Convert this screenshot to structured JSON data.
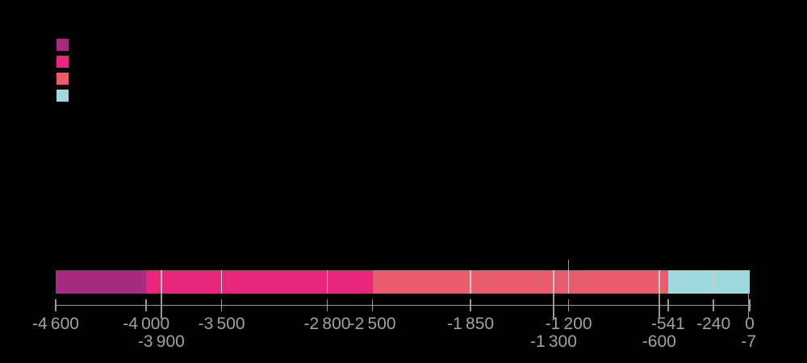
{
  "background_color": "#000000",
  "legend": {
    "swatches": [
      {
        "name": "period-group-1",
        "color": "#a62a7f"
      },
      {
        "name": "period-group-2",
        "color": "#e8267c"
      },
      {
        "name": "period-group-3",
        "color": "#e85c6e"
      },
      {
        "name": "period-group-4",
        "color": "#9fd9de"
      }
    ]
  },
  "chart_data": {
    "type": "bar",
    "subtype": "horizontal-stacked-timeline",
    "axis": {
      "min": -4600,
      "max": 0,
      "baseline_color": "#999999",
      "tick_color": "#999999",
      "label_color": "#a1a1a1",
      "grid": false
    },
    "segments": [
      {
        "start": -4600,
        "end": -4000,
        "color": "#a62a7f"
      },
      {
        "start": -4000,
        "end": -2500,
        "color": "#e8267c"
      },
      {
        "start": -2500,
        "end": -541,
        "color": "#e85c6e"
      },
      {
        "start": -541,
        "end": 0,
        "color": "#9fd9de"
      }
    ],
    "dividers": [
      -3900,
      -3500,
      -2800,
      -1850,
      -1300,
      -1200,
      -600,
      -240
    ],
    "ticks": [
      {
        "value": -4600,
        "label": "-4 600",
        "row": 1
      },
      {
        "value": -4000,
        "label": "-4 000",
        "row": 1
      },
      {
        "value": -3900,
        "label": "-3 900",
        "row": 2
      },
      {
        "value": -3500,
        "label": "-3 500",
        "row": 1
      },
      {
        "value": -2800,
        "label": "-2 800",
        "row": 1
      },
      {
        "value": -2500,
        "label": "-2 500",
        "row": 1
      },
      {
        "value": -1850,
        "label": "-1 850",
        "row": 1
      },
      {
        "value": -1300,
        "label": "-1 300",
        "row": 2
      },
      {
        "value": -1200,
        "label": "-1 200",
        "row": 1
      },
      {
        "value": -600,
        "label": "-600",
        "row": 2
      },
      {
        "value": -541,
        "label": "-541",
        "row": 1
      },
      {
        "value": -240,
        "label": "-240",
        "row": 1
      },
      {
        "value": -7,
        "label": "-7",
        "row": 2
      },
      {
        "value": 0,
        "label": "0",
        "row": 1
      }
    ],
    "annotation_line": {
      "value": -1200
    }
  }
}
